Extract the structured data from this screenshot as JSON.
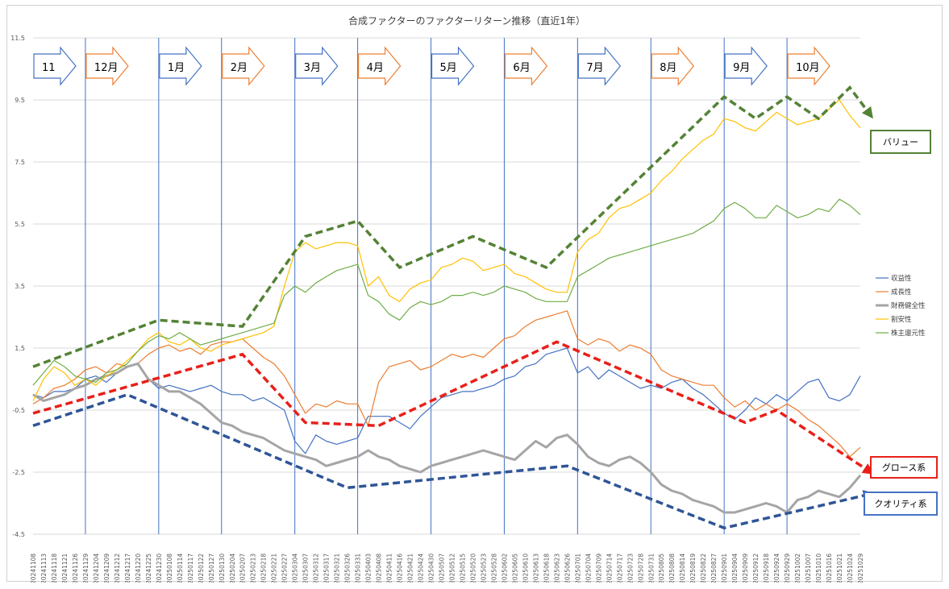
{
  "chart_data": {
    "type": "line",
    "title": "合成ファクターのファクターリターン推移（直近1年）",
    "ylim": [
      -4.5,
      11.5
    ],
    "yticks": [
      -4.5,
      -2.5,
      -0.5,
      1.5,
      3.5,
      5.5,
      7.5,
      9.5,
      11.5
    ],
    "x_labels": [
      "20241108",
      "20241113",
      "20241118",
      "20241121",
      "20241126",
      "20241129",
      "20241204",
      "20241209",
      "20241212",
      "20241217",
      "20241220",
      "20241225",
      "20241230",
      "20250108",
      "20250114",
      "20250117",
      "20250122",
      "20250127",
      "20250130",
      "20250204",
      "20250207",
      "20250213",
      "20250218",
      "20250221",
      "20250227",
      "20250304",
      "20250307",
      "20250312",
      "20250317",
      "20250321",
      "20250326",
      "20250331",
      "20250403",
      "20250408",
      "20250411",
      "20250416",
      "20250421",
      "20250424",
      "20250430",
      "20250507",
      "20250512",
      "20250515",
      "20250520",
      "20250523",
      "20250528",
      "20250602",
      "20250605",
      "20250610",
      "20250613",
      "20250618",
      "20250623",
      "20250626",
      "20250701",
      "20250704",
      "20250709",
      "20250714",
      "20250717",
      "20250723",
      "20250728",
      "20250731",
      "20250805",
      "20250808",
      "20250814",
      "20250819",
      "20250822",
      "20250827",
      "20250901",
      "20250904",
      "20250909",
      "20250912",
      "20250918",
      "20250924",
      "20250929",
      "20251002",
      "20251007",
      "20251010",
      "20251016",
      "20251021",
      "20251024",
      "20251029"
    ],
    "series": [
      {
        "name": "収益性",
        "color": "#4472c4",
        "width": 1.2,
        "values": [
          0.0,
          -0.1,
          0.1,
          0.1,
          0.2,
          0.5,
          0.6,
          0.4,
          0.7,
          0.9,
          1.0,
          0.5,
          0.2,
          0.3,
          0.2,
          0.1,
          0.2,
          0.3,
          0.1,
          0.0,
          0.0,
          -0.2,
          -0.1,
          -0.3,
          -0.5,
          -1.5,
          -1.9,
          -1.3,
          -1.5,
          -1.6,
          -1.5,
          -1.4,
          -0.7,
          -0.7,
          -0.7,
          -0.9,
          -1.1,
          -0.7,
          -0.4,
          -0.1,
          0.0,
          0.1,
          0.1,
          0.2,
          0.3,
          0.5,
          0.6,
          0.9,
          1.0,
          1.3,
          1.4,
          1.5,
          0.7,
          0.9,
          0.5,
          0.8,
          0.6,
          0.4,
          0.2,
          0.3,
          0.2,
          0.4,
          0.5,
          0.2,
          0.0,
          -0.3,
          -0.6,
          -0.8,
          -0.5,
          -0.1,
          -0.3,
          0.0,
          -0.2,
          0.1,
          0.4,
          0.5,
          -0.1,
          -0.2,
          0.0,
          0.6
        ]
      },
      {
        "name": "成長性",
        "color": "#ed7d31",
        "width": 1.2,
        "values": [
          -0.3,
          -0.1,
          0.2,
          0.3,
          0.5,
          0.8,
          0.9,
          0.7,
          1.0,
          0.9,
          1.0,
          1.3,
          1.5,
          1.6,
          1.4,
          1.5,
          1.3,
          1.6,
          1.7,
          1.7,
          1.8,
          1.5,
          1.2,
          1.0,
          0.6,
          0.0,
          -0.6,
          -0.3,
          -0.4,
          -0.2,
          -0.3,
          -0.3,
          -1.0,
          0.4,
          0.9,
          1.0,
          1.1,
          0.8,
          0.9,
          1.1,
          1.3,
          1.2,
          1.3,
          1.2,
          1.5,
          1.8,
          1.9,
          2.2,
          2.4,
          2.5,
          2.6,
          2.7,
          1.8,
          1.6,
          1.8,
          1.7,
          1.4,
          1.6,
          1.5,
          1.3,
          0.8,
          0.6,
          0.5,
          0.4,
          0.3,
          0.3,
          -0.1,
          -0.4,
          -0.2,
          -0.5,
          -0.3,
          -0.5,
          -0.3,
          -0.5,
          -0.8,
          -1.0,
          -1.3,
          -1.6,
          -2.0,
          -1.7
        ]
      },
      {
        "name": "財務健全性",
        "color": "#a5a5a5",
        "width": 3.0,
        "values": [
          0.0,
          -0.2,
          -0.1,
          0.0,
          0.2,
          0.3,
          0.5,
          0.6,
          0.7,
          0.9,
          1.0,
          0.5,
          0.3,
          0.1,
          0.1,
          -0.1,
          -0.3,
          -0.6,
          -0.9,
          -1.0,
          -1.2,
          -1.3,
          -1.4,
          -1.6,
          -1.8,
          -1.9,
          -2.0,
          -2.1,
          -2.3,
          -2.2,
          -2.1,
          -2.0,
          -1.8,
          -2.0,
          -2.1,
          -2.3,
          -2.4,
          -2.5,
          -2.3,
          -2.2,
          -2.1,
          -2.0,
          -1.9,
          -1.8,
          -1.9,
          -2.0,
          -2.1,
          -1.8,
          -1.5,
          -1.7,
          -1.4,
          -1.3,
          -1.6,
          -2.0,
          -2.2,
          -2.3,
          -2.1,
          -2.0,
          -2.2,
          -2.5,
          -2.9,
          -3.1,
          -3.2,
          -3.4,
          -3.5,
          -3.6,
          -3.8,
          -3.8,
          -3.7,
          -3.6,
          -3.5,
          -3.6,
          -3.8,
          -3.4,
          -3.3,
          -3.1,
          -3.2,
          -3.3,
          -3.0,
          -2.6
        ]
      },
      {
        "name": "割安性",
        "color": "#ffc000",
        "width": 1.2,
        "values": [
          -0.2,
          0.5,
          0.9,
          0.7,
          0.3,
          0.5,
          0.3,
          0.6,
          0.8,
          1.1,
          1.4,
          1.8,
          2.0,
          1.7,
          1.6,
          1.8,
          1.5,
          1.4,
          1.6,
          1.7,
          1.8,
          1.9,
          2.0,
          2.2,
          3.5,
          4.6,
          4.9,
          4.7,
          4.8,
          4.9,
          4.9,
          4.8,
          3.5,
          3.8,
          3.2,
          3.0,
          3.4,
          3.6,
          3.7,
          4.1,
          4.2,
          4.4,
          4.3,
          4.0,
          4.1,
          4.2,
          3.9,
          3.8,
          3.6,
          3.4,
          3.3,
          3.3,
          4.6,
          5.0,
          5.2,
          5.7,
          6.0,
          6.1,
          6.3,
          6.5,
          6.9,
          7.2,
          7.6,
          7.9,
          8.2,
          8.4,
          8.9,
          8.8,
          8.6,
          8.5,
          8.8,
          9.1,
          8.9,
          8.7,
          8.8,
          8.9,
          9.2,
          9.5,
          9.0,
          8.6
        ]
      },
      {
        "name": "株主還元性",
        "color": "#70ad47",
        "width": 1.2,
        "values": [
          0.3,
          0.7,
          1.1,
          0.9,
          0.6,
          0.5,
          0.4,
          0.7,
          0.8,
          1.0,
          1.4,
          1.7,
          1.9,
          1.8,
          2.0,
          1.8,
          1.6,
          1.7,
          1.8,
          1.9,
          2.0,
          2.1,
          2.2,
          2.3,
          3.2,
          3.5,
          3.3,
          3.6,
          3.8,
          4.0,
          4.1,
          4.2,
          3.2,
          3.0,
          2.6,
          2.4,
          2.8,
          3.0,
          2.9,
          3.0,
          3.2,
          3.2,
          3.3,
          3.2,
          3.3,
          3.5,
          3.4,
          3.3,
          3.1,
          3.0,
          3.0,
          3.0,
          3.8,
          4.0,
          4.2,
          4.4,
          4.5,
          4.6,
          4.7,
          4.8,
          4.9,
          5.0,
          5.1,
          5.2,
          5.4,
          5.6,
          6.0,
          6.2,
          6.0,
          5.7,
          5.7,
          6.1,
          5.9,
          5.7,
          5.8,
          6.0,
          5.9,
          6.3,
          6.1,
          5.8
        ]
      }
    ],
    "legend_position": "right"
  },
  "month_labels": [
    {
      "text": "11",
      "x_index": 0,
      "color": "blue"
    },
    {
      "text": "12月",
      "x_index": 5,
      "color": "orange"
    },
    {
      "text": "1月",
      "x_index": 12,
      "color": "blue"
    },
    {
      "text": "2月",
      "x_index": 18,
      "color": "orange"
    },
    {
      "text": "3月",
      "x_index": 25,
      "color": "blue"
    },
    {
      "text": "4月",
      "x_index": 31,
      "color": "orange"
    },
    {
      "text": "5月",
      "x_index": 38,
      "color": "blue"
    },
    {
      "text": "6月",
      "x_index": 45,
      "color": "orange"
    },
    {
      "text": "7月",
      "x_index": 52,
      "color": "blue"
    },
    {
      "text": "8月",
      "x_index": 59,
      "color": "orange"
    },
    {
      "text": "9月",
      "x_index": 66,
      "color": "blue"
    },
    {
      "text": "10月",
      "x_index": 72,
      "color": "orange"
    }
  ],
  "trend_lines": [
    {
      "name": "バリュー",
      "color": "#548235",
      "points": [
        [
          0,
          0.9
        ],
        [
          12,
          2.4
        ],
        [
          20,
          2.2
        ],
        [
          26,
          5.1
        ],
        [
          31,
          5.6
        ],
        [
          35,
          4.1
        ],
        [
          42,
          5.1
        ],
        [
          49,
          4.1
        ],
        [
          66,
          9.6
        ],
        [
          69,
          8.9
        ],
        [
          72,
          9.6
        ],
        [
          75,
          8.9
        ],
        [
          78,
          9.9
        ],
        [
          80,
          9.0
        ]
      ]
    },
    {
      "name": "グロース系",
      "color": "#e8201a",
      "points": [
        [
          0,
          -0.6
        ],
        [
          20,
          1.3
        ],
        [
          26,
          -0.9
        ],
        [
          33,
          -1.0
        ],
        [
          50,
          1.7
        ],
        [
          68,
          -0.9
        ],
        [
          71,
          -0.5
        ],
        [
          80,
          -2.5
        ]
      ]
    },
    {
      "name": "クオリティ系",
      "color": "#2f5597",
      "points": [
        [
          0,
          -1.0
        ],
        [
          9,
          0.0
        ],
        [
          30,
          -3.0
        ],
        [
          51,
          -2.3
        ],
        [
          66,
          -4.3
        ],
        [
          80,
          -3.2
        ]
      ]
    }
  ],
  "callouts": [
    {
      "text": "バリュー",
      "border": "#548235"
    },
    {
      "text": "グロース系",
      "border": "#e8201a"
    },
    {
      "text": "クオリティ系",
      "border": "#4472c4"
    }
  ],
  "colors": {
    "blue_arrow": "#4472c4",
    "orange_arrow": "#ed7d31",
    "grid": "#d9d9d9",
    "vline": "#4472c4"
  }
}
